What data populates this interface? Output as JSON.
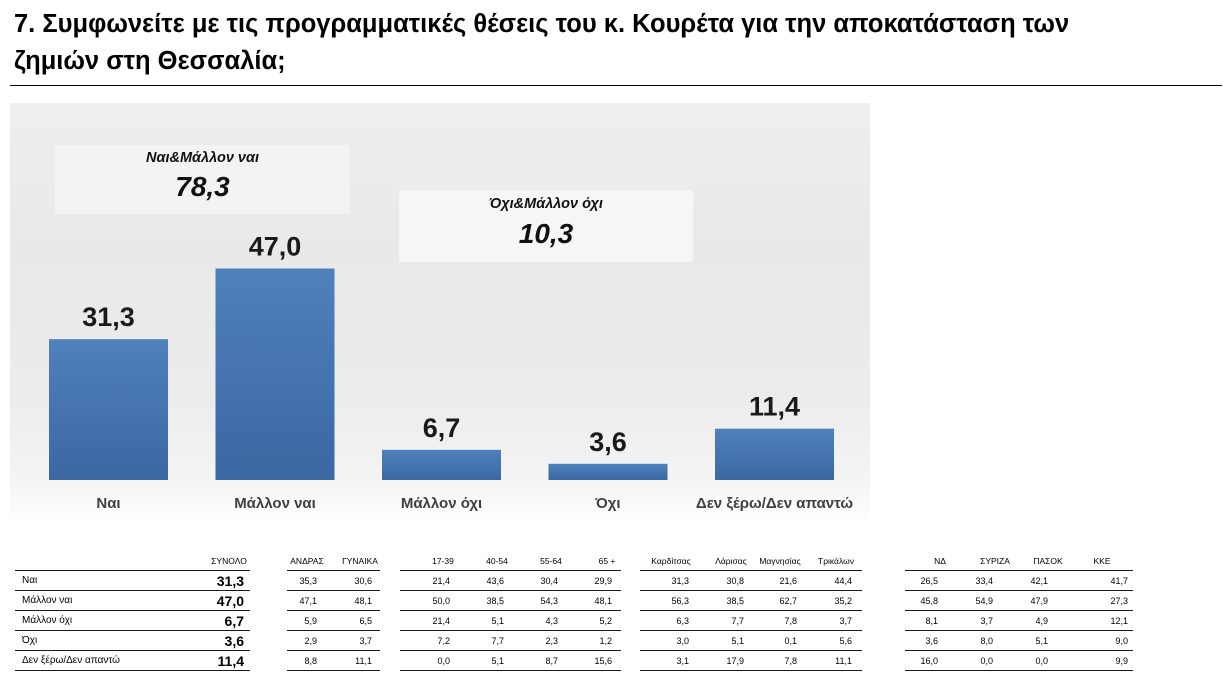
{
  "title": "7. Συμφωνείτε με τις προγραμματικές θέσεις του κ. Κουρέτα για την αποκατάσταση των\nζημιών στη Θεσσαλία;",
  "chart_data": {
    "type": "bar",
    "categories": [
      "Ναι",
      "Μάλλον ναι",
      "Μάλλον όχι",
      "Όχι",
      "Δεν ξέρω/Δεν απαντώ"
    ],
    "values": [
      31.3,
      47.0,
      6.7,
      3.6,
      11.4
    ],
    "data_labels": [
      "31,3",
      "47,0",
      "6,7",
      "3,6",
      "11,4"
    ],
    "ylim": [
      0,
      50
    ],
    "axes_visible": false,
    "grid": false,
    "legend": "none",
    "bar_color": "#4f81bd",
    "annotations": [
      {
        "label": "Ναι&Μάλλον ναι",
        "value": "78,3"
      },
      {
        "label": "Όχι&Μάλλον όχι",
        "value": "10,3"
      }
    ]
  },
  "table": {
    "columns": [
      "ΣΥΝΟΛΟ",
      "ΑΝΔΡΑΣ",
      "ΓΥΝΑΙΚΑ",
      "17-39",
      "40-54",
      "55-64",
      "65 +",
      "Καρδίτσας",
      "Λάρισας",
      "Μαγνησίας",
      "Τρικάλων",
      "ΝΔ",
      "ΣΥΡΙΖΑ",
      "ΠΑΣΟΚ",
      "ΚΚΕ"
    ],
    "rows": [
      {
        "label": "Ναι",
        "values": [
          "31,3",
          "35,3",
          "30,6",
          "21,4",
          "43,6",
          "30,4",
          "29,9",
          "31,3",
          "30,8",
          "21,6",
          "44,4",
          "26,5",
          "33,4",
          "42,1",
          "41,7"
        ]
      },
      {
        "label": "Μάλλον ναι",
        "values": [
          "47,0",
          "47,1",
          "48,1",
          "50,0",
          "38,5",
          "54,3",
          "48,1",
          "56,3",
          "38,5",
          "62,7",
          "35,2",
          "45,8",
          "54,9",
          "47,9",
          "27,3"
        ]
      },
      {
        "label": "Μάλλον όχι",
        "values": [
          "6,7",
          "5,9",
          "6,5",
          "21,4",
          "5,1",
          "4,3",
          "5,2",
          "6,3",
          "7,7",
          "7,8",
          "3,7",
          "8,1",
          "3,7",
          "4,9",
          "12,1"
        ]
      },
      {
        "label": "Όχι",
        "values": [
          "3,6",
          "2,9",
          "3,7",
          "7,2",
          "7,7",
          "2,3",
          "1,2",
          "3,0",
          "5,1",
          "0,1",
          "5,6",
          "3,6",
          "8,0",
          "5,1",
          "9,0"
        ]
      },
      {
        "label": "Δεν ξέρω/Δεν απαντώ",
        "values": [
          "11,4",
          "8,8",
          "11,1",
          "0,0",
          "5,1",
          "8,7",
          "15,6",
          "3,1",
          "17,9",
          "7,8",
          "11,1",
          "16,0",
          "0,0",
          "0,0",
          "9,9"
        ]
      }
    ]
  }
}
